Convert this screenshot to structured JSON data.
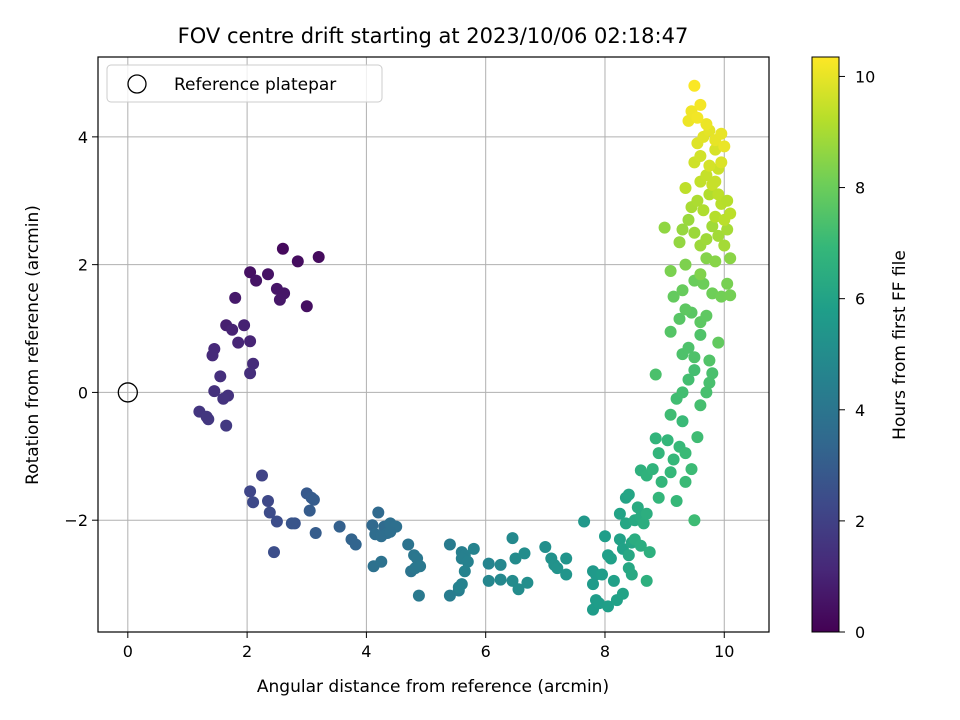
{
  "chart_data": {
    "type": "scatter",
    "title": "FOV centre drift starting at 2023/10/06 02:18:47",
    "xlabel": "Angular distance from reference (arcmin)",
    "ylabel": "Rotation from reference (arcmin)",
    "xlim": [
      -0.5,
      10.75
    ],
    "ylim": [
      -3.75,
      5.25
    ],
    "xticks": [
      0,
      2,
      4,
      6,
      8,
      10
    ],
    "yticks": [
      -2,
      0,
      2,
      4
    ],
    "grid": true,
    "legend": {
      "placement": "top-left",
      "entries": [
        "Reference platepar"
      ]
    },
    "reference_point": {
      "x": 0,
      "y": 0,
      "label": "Reference platepar"
    },
    "colorbar": {
      "label": "Hours from first FF file",
      "range": [
        0,
        10.35
      ],
      "ticks": [
        0,
        2,
        4,
        6,
        8,
        10
      ],
      "colormap": "viridis",
      "colors": [
        "#440154",
        "#472878",
        "#3e4989",
        "#31688e",
        "#26828e",
        "#1f9e89",
        "#35b779",
        "#6ece58",
        "#b5de2b",
        "#fde725"
      ]
    },
    "points": [
      [
        2.6,
        2.25,
        0.25
      ],
      [
        3.2,
        2.12,
        0.3
      ],
      [
        2.85,
        2.05,
        0.35
      ],
      [
        2.05,
        1.88,
        0.45
      ],
      [
        2.35,
        1.85,
        0.5
      ],
      [
        2.15,
        1.75,
        0.55
      ],
      [
        2.5,
        1.62,
        0.6
      ],
      [
        2.62,
        1.55,
        0.62
      ],
      [
        2.55,
        1.45,
        0.65
      ],
      [
        1.8,
        1.48,
        0.7
      ],
      [
        3.0,
        1.35,
        0.4
      ],
      [
        1.65,
        1.05,
        0.9
      ],
      [
        1.95,
        1.05,
        0.95
      ],
      [
        1.75,
        0.98,
        1.0
      ],
      [
        2.05,
        0.8,
        1.05
      ],
      [
        1.85,
        0.78,
        1.1
      ],
      [
        1.45,
        0.68,
        1.2
      ],
      [
        1.42,
        0.58,
        1.25
      ],
      [
        2.1,
        0.45,
        1.3
      ],
      [
        2.05,
        0.3,
        1.35
      ],
      [
        1.55,
        0.25,
        1.4
      ],
      [
        1.45,
        0.02,
        1.45
      ],
      [
        1.68,
        -0.05,
        1.5
      ],
      [
        1.6,
        -0.1,
        1.55
      ],
      [
        1.2,
        -0.3,
        1.6
      ],
      [
        1.35,
        -0.42,
        1.7
      ],
      [
        1.65,
        -0.52,
        1.75
      ],
      [
        1.32,
        -0.38,
        1.65
      ],
      [
        2.25,
        -1.3,
        2.1
      ],
      [
        2.05,
        -1.55,
        2.2
      ],
      [
        2.35,
        -1.7,
        2.25
      ],
      [
        2.1,
        -1.72,
        2.3
      ],
      [
        2.38,
        -1.88,
        2.4
      ],
      [
        2.5,
        -2.02,
        2.45
      ],
      [
        2.45,
        -2.5,
        2.5
      ],
      [
        2.8,
        -2.05,
        2.7
      ],
      [
        2.75,
        -2.05,
        2.75
      ],
      [
        3.0,
        -1.58,
        2.9
      ],
      [
        3.08,
        -1.65,
        2.95
      ],
      [
        3.12,
        -1.68,
        3.0
      ],
      [
        3.05,
        -1.85,
        3.0
      ],
      [
        3.15,
        -2.2,
        3.05
      ],
      [
        3.55,
        -2.1,
        3.2
      ],
      [
        3.75,
        -2.3,
        3.3
      ],
      [
        3.82,
        -2.38,
        3.35
      ],
      [
        4.1,
        -2.08,
        3.5
      ],
      [
        4.2,
        -1.88,
        3.55
      ],
      [
        4.3,
        -2.1,
        3.6
      ],
      [
        4.15,
        -2.22,
        3.65
      ],
      [
        4.25,
        -2.25,
        3.7
      ],
      [
        4.35,
        -2.2,
        3.72
      ],
      [
        4.4,
        -2.05,
        3.75
      ],
      [
        4.5,
        -2.1,
        3.8
      ],
      [
        4.4,
        -2.18,
        3.78
      ],
      [
        4.12,
        -2.72,
        3.85
      ],
      [
        4.25,
        -2.65,
        3.9
      ],
      [
        4.7,
        -2.38,
        3.95
      ],
      [
        4.75,
        -2.8,
        4.0
      ],
      [
        4.8,
        -2.55,
        4.05
      ],
      [
        4.85,
        -2.6,
        4.1
      ],
      [
        4.82,
        -2.75,
        4.12
      ],
      [
        4.9,
        -2.72,
        4.15
      ],
      [
        4.88,
        -3.18,
        4.2
      ],
      [
        5.4,
        -2.38,
        4.3
      ],
      [
        5.4,
        -3.18,
        4.35
      ],
      [
        5.55,
        -3.1,
        4.4
      ],
      [
        5.6,
        -2.5,
        4.45
      ],
      [
        5.65,
        -2.55,
        4.5
      ],
      [
        5.6,
        -2.6,
        4.52
      ],
      [
        5.7,
        -2.65,
        4.55
      ],
      [
        5.65,
        -2.8,
        4.58
      ],
      [
        5.6,
        -3.0,
        4.6
      ],
      [
        5.55,
        -3.05,
        4.62
      ],
      [
        5.8,
        -2.45,
        4.65
      ],
      [
        6.05,
        -2.68,
        4.7
      ],
      [
        6.05,
        -2.95,
        4.75
      ],
      [
        6.25,
        -2.7,
        4.8
      ],
      [
        6.25,
        -2.93,
        4.85
      ],
      [
        6.45,
        -2.28,
        4.9
      ],
      [
        6.45,
        -2.95,
        4.95
      ],
      [
        6.5,
        -2.6,
        4.98
      ],
      [
        6.55,
        -3.08,
        5.0
      ],
      [
        6.65,
        -2.52,
        5.05
      ],
      [
        6.7,
        -2.98,
        5.1
      ],
      [
        7.0,
        -2.42,
        5.15
      ],
      [
        7.1,
        -2.6,
        5.2
      ],
      [
        7.15,
        -2.7,
        5.25
      ],
      [
        7.2,
        -2.75,
        5.3
      ],
      [
        7.35,
        -2.6,
        5.35
      ],
      [
        7.35,
        -2.85,
        5.4
      ],
      [
        7.65,
        -2.02,
        5.5
      ],
      [
        7.8,
        -2.8,
        5.55
      ],
      [
        7.85,
        -2.85,
        5.6
      ],
      [
        7.8,
        -3.0,
        5.62
      ],
      [
        7.85,
        -3.25,
        5.65
      ],
      [
        7.8,
        -3.4,
        5.68
      ],
      [
        7.9,
        -3.3,
        5.7
      ],
      [
        7.95,
        -2.85,
        5.72
      ],
      [
        8.0,
        -2.25,
        5.75
      ],
      [
        8.05,
        -2.55,
        5.78
      ],
      [
        8.05,
        -3.35,
        5.8
      ],
      [
        8.1,
        -2.6,
        5.82
      ],
      [
        8.15,
        -2.95,
        5.85
      ],
      [
        8.2,
        -3.25,
        5.88
      ],
      [
        8.25,
        -2.3,
        5.9
      ],
      [
        8.3,
        -2.45,
        5.92
      ],
      [
        8.3,
        -3.15,
        5.95
      ],
      [
        8.25,
        -1.9,
        5.98
      ],
      [
        8.35,
        -1.65,
        6.0
      ],
      [
        8.4,
        -1.6,
        6.05
      ],
      [
        8.35,
        -2.05,
        6.1
      ],
      [
        8.45,
        -2.35,
        6.12
      ],
      [
        8.4,
        -2.55,
        6.15
      ],
      [
        8.4,
        -2.75,
        6.18
      ],
      [
        8.45,
        -2.85,
        6.2
      ],
      [
        8.5,
        -2.0,
        6.25
      ],
      [
        8.55,
        -1.8,
        6.3
      ],
      [
        8.6,
        -1.95,
        6.35
      ],
      [
        8.5,
        -2.3,
        6.4
      ],
      [
        8.6,
        -2.4,
        6.42
      ],
      [
        8.65,
        -2.05,
        6.45
      ],
      [
        8.7,
        -1.9,
        6.5
      ],
      [
        8.7,
        -2.95,
        6.52
      ],
      [
        8.75,
        -2.5,
        6.55
      ],
      [
        8.6,
        -1.22,
        6.6
      ],
      [
        8.7,
        -1.3,
        6.65
      ],
      [
        8.8,
        -1.2,
        6.7
      ],
      [
        8.85,
        -0.72,
        6.75
      ],
      [
        8.9,
        -0.95,
        6.78
      ],
      [
        8.95,
        -1.4,
        6.8
      ],
      [
        8.9,
        -1.65,
        6.82
      ],
      [
        9.05,
        -0.75,
        6.85
      ],
      [
        9.1,
        -1.25,
        6.88
      ],
      [
        9.15,
        -1.05,
        6.9
      ],
      [
        9.2,
        -1.7,
        6.92
      ],
      [
        9.25,
        -0.85,
        6.95
      ],
      [
        9.3,
        -0.45,
        6.98
      ],
      [
        9.35,
        -0.95,
        7.0
      ],
      [
        9.35,
        -1.4,
        7.02
      ],
      [
        9.45,
        -1.2,
        7.05
      ],
      [
        9.5,
        -2.0,
        7.08
      ],
      [
        9.55,
        -0.7,
        7.1
      ],
      [
        9.1,
        -0.35,
        7.12
      ],
      [
        9.2,
        -0.1,
        7.15
      ],
      [
        9.3,
        0.0,
        7.18
      ],
      [
        9.4,
        0.2,
        7.2
      ],
      [
        9.5,
        0.35,
        7.22
      ],
      [
        9.6,
        -0.2,
        7.25
      ],
      [
        9.7,
        0.0,
        7.28
      ],
      [
        9.75,
        0.15,
        7.3
      ],
      [
        9.8,
        0.3,
        7.32
      ],
      [
        8.85,
        0.28,
        7.35
      ],
      [
        9.3,
        0.6,
        7.38
      ],
      [
        9.4,
        0.7,
        7.4
      ],
      [
        9.5,
        0.55,
        7.42
      ],
      [
        9.6,
        0.9,
        7.45
      ],
      [
        9.75,
        0.5,
        7.48
      ],
      [
        9.1,
        0.95,
        7.55
      ],
      [
        9.25,
        1.15,
        7.6
      ],
      [
        9.45,
        1.25,
        7.65
      ],
      [
        9.6,
        1.1,
        7.7
      ],
      [
        9.35,
        1.3,
        7.72
      ],
      [
        9.7,
        1.2,
        7.75
      ],
      [
        9.9,
        0.78,
        7.8
      ],
      [
        9.15,
        1.5,
        7.85
      ],
      [
        9.3,
        1.6,
        7.9
      ],
      [
        9.5,
        1.75,
        7.95
      ],
      [
        9.65,
        1.7,
        8.0
      ],
      [
        9.8,
        1.55,
        8.05
      ],
      [
        9.95,
        1.5,
        8.1
      ],
      [
        10.1,
        1.52,
        8.15
      ],
      [
        10.05,
        1.7,
        8.2
      ],
      [
        9.1,
        1.9,
        8.25
      ],
      [
        9.35,
        2.0,
        8.3
      ],
      [
        9.6,
        1.85,
        8.35
      ],
      [
        9.7,
        2.1,
        8.4
      ],
      [
        9.85,
        2.05,
        8.45
      ],
      [
        10.1,
        2.1,
        8.5
      ],
      [
        9.0,
        2.58,
        8.6
      ],
      [
        9.25,
        2.35,
        8.65
      ],
      [
        9.3,
        2.55,
        8.7
      ],
      [
        9.4,
        2.7,
        8.75
      ],
      [
        9.5,
        2.5,
        8.78
      ],
      [
        9.6,
        2.3,
        8.8
      ],
      [
        9.7,
        2.4,
        8.85
      ],
      [
        9.8,
        2.6,
        8.88
      ],
      [
        9.9,
        2.45,
        8.9
      ],
      [
        10.0,
        2.3,
        8.92
      ],
      [
        10.05,
        2.55,
        8.95
      ],
      [
        9.45,
        2.9,
        9.0
      ],
      [
        9.55,
        3.0,
        9.05
      ],
      [
        9.65,
        2.85,
        9.1
      ],
      [
        9.75,
        3.1,
        9.15
      ],
      [
        9.85,
        2.75,
        9.2
      ],
      [
        9.95,
        2.95,
        9.25
      ],
      [
        10.0,
        2.7,
        9.28
      ],
      [
        10.1,
        2.8,
        9.3
      ],
      [
        9.35,
        3.2,
        9.35
      ],
      [
        9.6,
        3.3,
        9.4
      ],
      [
        9.7,
        3.4,
        9.45
      ],
      [
        9.8,
        3.25,
        9.5
      ],
      [
        9.9,
        3.5,
        9.55
      ],
      [
        9.5,
        3.6,
        9.6
      ],
      [
        9.6,
        3.7,
        9.65
      ],
      [
        9.75,
        3.55,
        9.7
      ],
      [
        9.85,
        3.8,
        9.75
      ],
      [
        9.95,
        3.6,
        9.8
      ],
      [
        9.55,
        3.9,
        9.85
      ],
      [
        9.65,
        4.0,
        9.9
      ],
      [
        9.75,
        4.1,
        9.95
      ],
      [
        9.85,
        3.95,
        10.0
      ],
      [
        9.95,
        4.05,
        10.02
      ],
      [
        10.0,
        3.85,
        10.05
      ],
      [
        9.7,
        4.2,
        10.08
      ],
      [
        9.4,
        4.25,
        10.1
      ],
      [
        9.45,
        4.4,
        10.15
      ],
      [
        9.55,
        4.3,
        10.18
      ],
      [
        9.6,
        4.5,
        10.2
      ],
      [
        9.5,
        4.8,
        10.3
      ],
      [
        9.85,
        3.3,
        9.48
      ],
      [
        9.9,
        3.1,
        9.32
      ],
      [
        10.05,
        3.0,
        9.22
      ]
    ]
  }
}
